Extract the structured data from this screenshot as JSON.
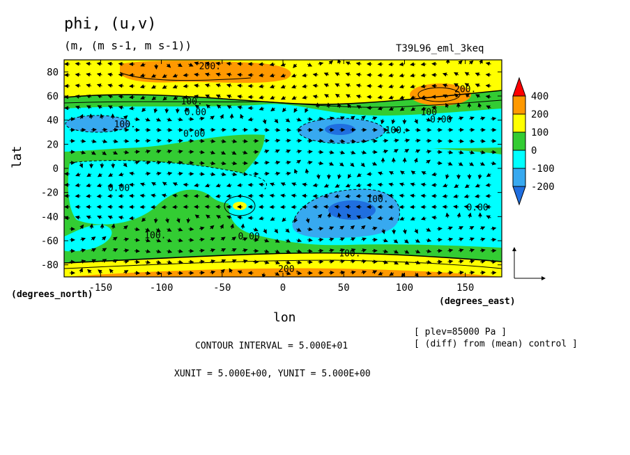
{
  "header": {
    "title": "phi, (u,v)",
    "units": "(m, (m s-1, m s-1))",
    "case": "T39L96_eml_3keq"
  },
  "footer": {
    "x_units": "(degrees_east)",
    "y_units": "(degrees_north)",
    "plev": "[ plev=85000 Pa ]",
    "diff_note": "[ (diff) from (mean) control ]",
    "contour_interval": "CONTOUR INTERVAL = 5.000E+01",
    "vector_units": "XUNIT = 5.000E+00, YUNIT = 5.000E+00"
  },
  "colors": {
    "lt_-200": "#1f6fe0",
    "-200_-100": "#37a9f0",
    "-100_0": "#00ffff",
    "0_100": "#33cc33",
    "100_200": "#ffff00",
    "200_400": "#ff9900",
    "gt_400": "#ff0000"
  },
  "chart_data": {
    "type": "heatmap",
    "title": "phi, (u,v)",
    "subtitle": "(m, (m s-1, m s-1))",
    "xlabel": "lon",
    "ylabel": "lat",
    "xlim": [
      -180,
      180
    ],
    "ylim": [
      -90,
      90
    ],
    "x_ticks": [
      -150,
      -100,
      -50,
      0,
      50,
      100,
      150
    ],
    "y_ticks": [
      -80,
      -60,
      -40,
      -20,
      0,
      20,
      40,
      60,
      80
    ],
    "colorbar": {
      "levels": [
        -200,
        -100,
        0,
        100,
        200,
        400
      ],
      "labels": [
        "400",
        "200",
        "100",
        "0",
        "-100",
        "-200"
      ]
    },
    "contour_labels": [
      {
        "text": "200.",
        "lon": -60,
        "lat": 85
      },
      {
        "text": "200.",
        "lon": 150,
        "lat": 66
      },
      {
        "text": "100.",
        "lon": -75,
        "lat": 56
      },
      {
        "text": "0.00",
        "lon": -72,
        "lat": 47
      },
      {
        "text": "100",
        "lon": 120,
        "lat": 47
      },
      {
        "text": "0.00",
        "lon": 130,
        "lat": 41
      },
      {
        "text": "100.",
        "lon": -130,
        "lat": 37
      },
      {
        "text": "100.",
        "lon": 93,
        "lat": 32
      },
      {
        "text": "0.00",
        "lon": -73,
        "lat": 29
      },
      {
        "text": "0.00",
        "lon": -135,
        "lat": -16
      },
      {
        "text": "100.",
        "lon": 78,
        "lat": -25
      },
      {
        "text": "0.00",
        "lon": 160,
        "lat": -32
      },
      {
        "text": "0.00",
        "lon": -28,
        "lat": -56
      },
      {
        "text": "100.",
        "lon": -105,
        "lat": -55
      },
      {
        "text": "100.",
        "lon": 55,
        "lat": -70
      },
      {
        "text": "200.",
        "lon": 5,
        "lat": -83
      }
    ]
  }
}
